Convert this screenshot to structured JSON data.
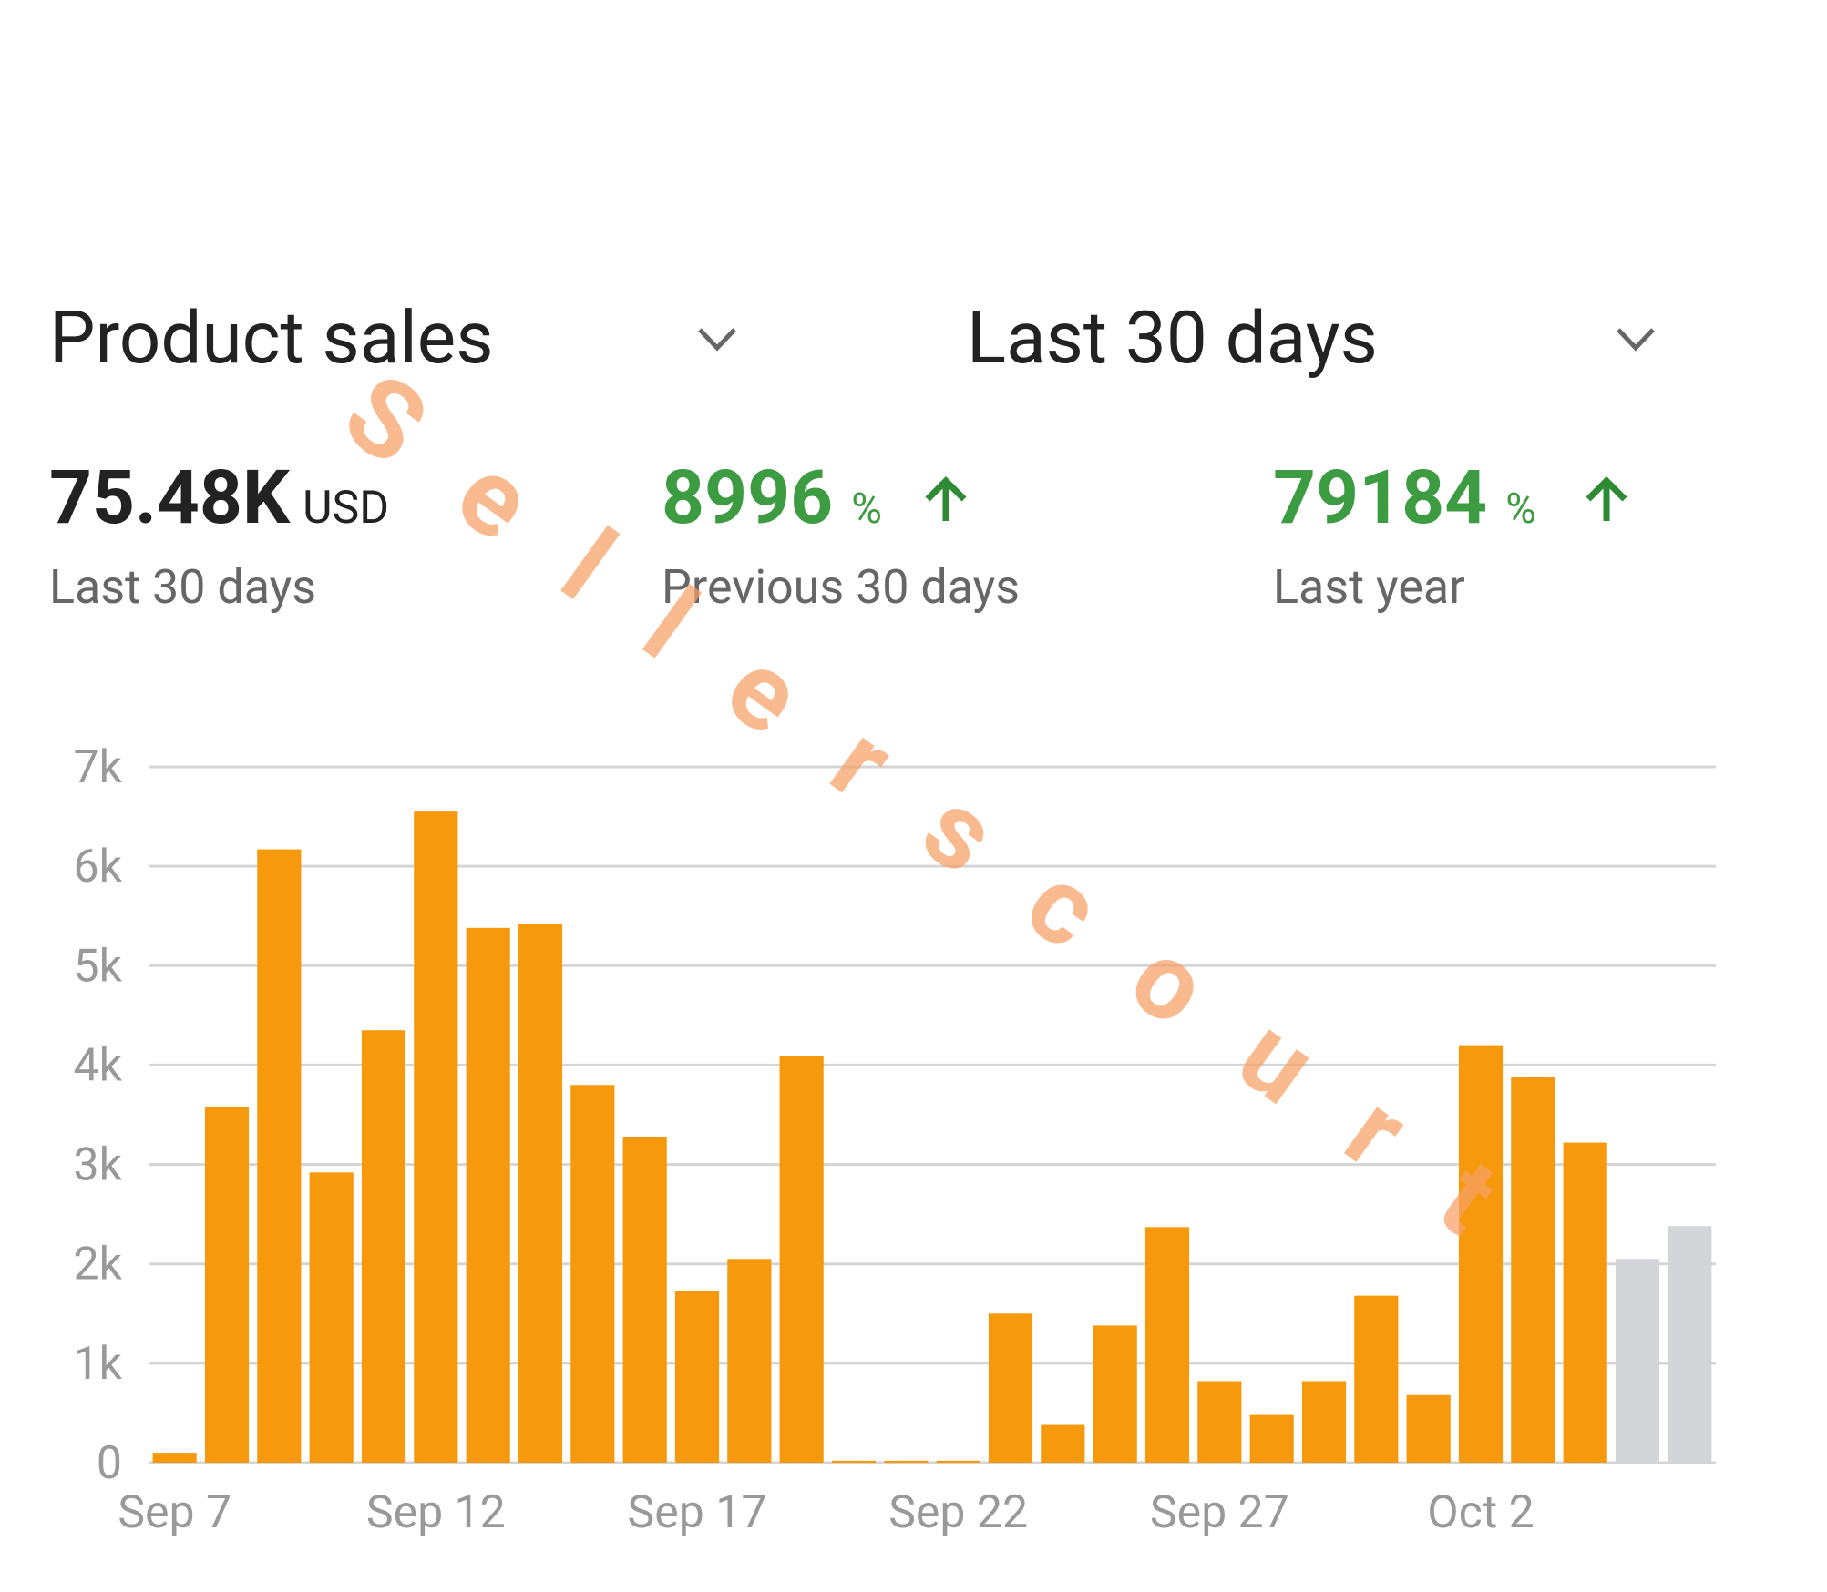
{
  "header": {
    "metric_selector": "Product sales",
    "period_selector": "Last 30 days"
  },
  "metrics": [
    {
      "value": "75.48K",
      "unit": "USD",
      "label": "Last 30 days"
    },
    {
      "value": "8996",
      "unit": "%",
      "label": "Previous 30 days"
    },
    {
      "value": "79184",
      "unit": "%",
      "label": "Last year"
    }
  ],
  "watermark": "Sellerscourt",
  "chart_data": {
    "type": "bar",
    "categories": [
      "Sep 7",
      null,
      null,
      null,
      null,
      "Sep 12",
      null,
      null,
      null,
      null,
      "Sep 17",
      null,
      null,
      null,
      null,
      "Sep 22",
      null,
      null,
      null,
      null,
      "Sep 27",
      null,
      null,
      null,
      null,
      "Oct 2",
      null,
      null,
      null,
      null
    ],
    "values": [
      100,
      3580,
      6170,
      2920,
      4350,
      6550,
      5380,
      5420,
      3800,
      3280,
      1730,
      2050,
      4090,
      20,
      20,
      20,
      1500,
      380,
      1380,
      2370,
      820,
      480,
      820,
      1680,
      680,
      4200,
      3880,
      3220,
      2050,
      2380
    ],
    "bar_colors": [
      "#f7990c",
      "#f7990c",
      "#f7990c",
      "#f7990c",
      "#f7990c",
      "#f7990c",
      "#f7990c",
      "#f7990c",
      "#f7990c",
      "#f7990c",
      "#f7990c",
      "#f7990c",
      "#f7990c",
      "#f7990c",
      "#f7990c",
      "#f7990c",
      "#f7990c",
      "#f7990c",
      "#f7990c",
      "#f7990c",
      "#f7990c",
      "#f7990c",
      "#f7990c",
      "#f7990c",
      "#f7990c",
      "#f7990c",
      "#f7990c",
      "#f7990c",
      "#d4d5d9",
      "#d4d5d9"
    ],
    "ylim": [
      0,
      7000
    ],
    "yticks": [
      0,
      {
        "value": 1000,
        "label": "1k"
      },
      {
        "value": 2000,
        "label": "2k"
      },
      {
        "value": 3000,
        "label": "3k"
      },
      {
        "value": 4000,
        "label": "4k"
      },
      {
        "value": 5000,
        "label": "5k"
      },
      {
        "value": 6000,
        "label": "6k"
      },
      {
        "value": 7000,
        "label": "7k"
      }
    ],
    "grid": true
  }
}
